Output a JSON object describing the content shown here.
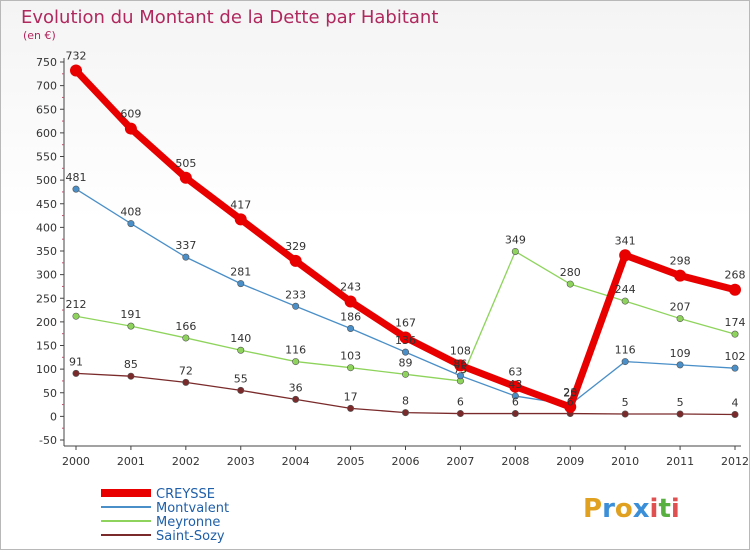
{
  "chart_data": {
    "type": "line",
    "title": "Evolution du Montant de la Dette par Habitant",
    "subtitle": "(en €)",
    "x": [
      "2000",
      "2001",
      "2002",
      "2003",
      "2004",
      "2005",
      "2006",
      "2007",
      "2008",
      "2009",
      "2010",
      "2011",
      "2012"
    ],
    "ylim": [
      -50,
      750
    ],
    "yticks": [
      -50,
      0,
      50,
      100,
      150,
      200,
      250,
      300,
      350,
      400,
      450,
      500,
      550,
      600,
      650,
      700,
      750
    ],
    "series": [
      {
        "name": "CREYSSE",
        "color": "#e80000",
        "values": [
          732,
          609,
          505,
          417,
          329,
          243,
          167,
          108,
          63,
          20,
          341,
          298,
          268
        ]
      },
      {
        "name": "Montvalent",
        "color": "#4a8fc8",
        "values": [
          481,
          408,
          337,
          281,
          233,
          186,
          136,
          86,
          43,
          25,
          116,
          109,
          102
        ]
      },
      {
        "name": "Meyronne",
        "color": "#8ed45c",
        "values": [
          212,
          191,
          166,
          140,
          116,
          103,
          89,
          75,
          349,
          280,
          244,
          207,
          174
        ]
      },
      {
        "name": "Saint-Sozy",
        "color": "#7a2a2a",
        "values": [
          91,
          85,
          72,
          55,
          36,
          17,
          8,
          6,
          6,
          6,
          5,
          5,
          4
        ]
      }
    ],
    "legend_position": "bottom-left",
    "grid": false
  },
  "logo": {
    "letters": [
      "P",
      "r",
      "o",
      "x",
      "i",
      "t",
      "i"
    ],
    "colors": [
      "#e0a020",
      "#3a8fd8",
      "#e0a020",
      "#3a8fd8",
      "#e05050",
      "#58b040",
      "#e05050"
    ]
  }
}
